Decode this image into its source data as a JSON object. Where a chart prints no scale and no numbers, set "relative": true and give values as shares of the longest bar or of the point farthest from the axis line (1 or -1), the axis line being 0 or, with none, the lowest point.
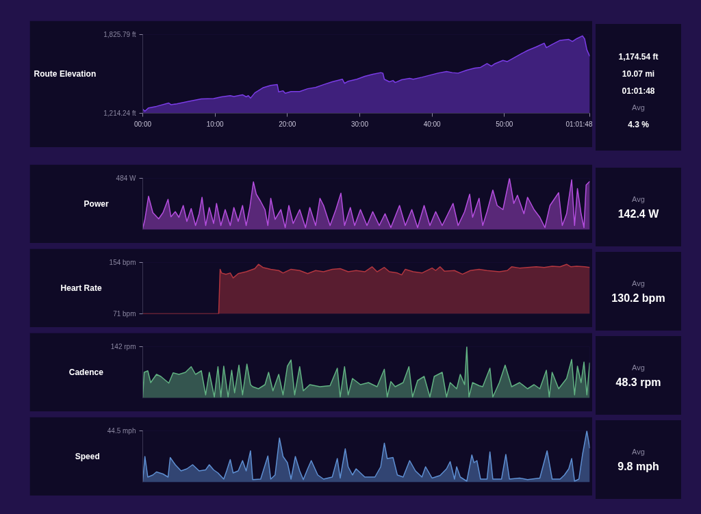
{
  "chart_data": [
    {
      "type": "area",
      "title": "Route Elevation",
      "xlim": [
        0,
        61.8
      ],
      "xticks": [
        {
          "value": 0,
          "label": "00:00"
        },
        {
          "value": 10,
          "label": "10:00"
        },
        {
          "value": 20,
          "label": "20:00"
        },
        {
          "value": 30,
          "label": "30:00"
        },
        {
          "value": 40,
          "label": "40:00"
        },
        {
          "value": 50,
          "label": "50:00"
        },
        {
          "value": 61.8,
          "label": "01:01:48"
        }
      ],
      "ylim": [
        1214.24,
        1825.79
      ],
      "yticks": [
        {
          "value": 1214.24,
          "label": "1,214.24 ft"
        },
        {
          "value": 1825.79,
          "label": "1,825.79 ft"
        }
      ],
      "x": [
        0,
        0.3,
        0.8,
        1.9,
        3.6,
        3.9,
        4.7,
        6.4,
        8.1,
        9.8,
        10.9,
        12.1,
        12.6,
        13.8,
        14.3,
        14.6,
        14.9,
        15.5,
        16.6,
        17.7,
        18.6,
        18.8,
        19.4,
        19.7,
        20.5,
        21.7,
        22.8,
        23.9,
        25.0,
        26.2,
        27.6,
        27.9,
        28.4,
        29.6,
        30.7,
        31.8,
        32.9,
        33.2,
        33.4,
        34.1,
        34.6,
        34.9,
        35.8,
        36.9,
        37.4,
        38.6,
        39.7,
        40.8,
        42.0,
        42.8,
        43.6,
        44.8,
        45.9,
        46.7,
        47.6,
        48.2,
        48.7,
        49.8,
        50.4,
        51.0,
        52.1,
        53.2,
        54.4,
        55.5,
        55.8,
        56.6,
        57.7,
        58.9,
        59.4,
        60.0,
        60.8,
        61.1,
        61.4,
        61.8
      ],
      "series": [
        {
          "color": "#7a3ce6",
          "values": [
            1246,
            1230,
            1256,
            1268,
            1294,
            1281,
            1287,
            1307,
            1326,
            1329,
            1342,
            1351,
            1345,
            1358,
            1342,
            1351,
            1332,
            1373,
            1412,
            1431,
            1437,
            1380,
            1389,
            1370,
            1383,
            1383,
            1405,
            1415,
            1437,
            1459,
            1479,
            1447,
            1463,
            1479,
            1501,
            1517,
            1530,
            1526,
            1479,
            1459,
            1469,
            1453,
            1475,
            1485,
            1479,
            1494,
            1510,
            1526,
            1539,
            1530,
            1526,
            1549,
            1565,
            1571,
            1600,
            1580,
            1600,
            1625,
            1616,
            1635,
            1670,
            1702,
            1730,
            1759,
            1724,
            1749,
            1781,
            1788,
            1772,
            1794,
            1816,
            1791,
            1708,
            1657
          ]
        }
      ],
      "annotations": [
        "1,174.54 ft",
        "10.07 mi",
        "01:01:48",
        "Avg",
        "4.3 %"
      ]
    },
    {
      "type": "area",
      "title": "Power",
      "relative": true,
      "xlim": [
        0,
        61.8
      ],
      "tick_labels": false,
      "x": [
        0,
        0.3,
        0.8,
        1.4,
        2.2,
        2.8,
        3.5,
        3.9,
        4.5,
        5.0,
        5.6,
        6.1,
        6.7,
        7.3,
        7.8,
        8.2,
        8.7,
        9.2,
        9.8,
        10.2,
        10.8,
        11.4,
        12.1,
        12.6,
        13.2,
        13.8,
        14.3,
        14.8,
        15.3,
        15.7,
        16.3,
        16.9,
        17.3,
        17.7,
        18.3,
        19.1,
        19.7,
        20.2,
        20.8,
        21.7,
        22.5,
        23.1,
        23.9,
        24.5,
        25.0,
        25.9,
        26.7,
        27.4,
        27.9,
        28.7,
        29.3,
        30.1,
        31.0,
        31.8,
        32.7,
        33.5,
        34.3,
        35.5,
        36.3,
        37.2,
        38.0,
        38.9,
        39.7,
        40.5,
        41.4,
        42.0,
        42.9,
        43.6,
        44.5,
        45.2,
        45.6,
        46.5,
        47.0,
        47.6,
        48.4,
        49.0,
        49.8,
        50.7,
        51.3,
        51.8,
        52.7,
        53.2,
        54.1,
        54.9,
        55.6,
        56.3,
        57.5,
        58.0,
        58.6,
        59.3,
        59.7,
        60.1,
        60.6,
        61.0,
        61.3,
        61.8
      ],
      "series": [
        {
          "color": "#b44ede",
          "values": [
            0.02,
            0.2,
            0.65,
            0.33,
            0.21,
            0.33,
            0.59,
            0.25,
            0.35,
            0.24,
            0.47,
            0.16,
            0.41,
            0.08,
            0.31,
            0.63,
            0.08,
            0.43,
            0.12,
            0.51,
            0.08,
            0.39,
            0.08,
            0.43,
            0.16,
            0.47,
            0.08,
            0.43,
            0.93,
            0.69,
            0.55,
            0.39,
            0.08,
            0.61,
            0.2,
            0.39,
            0.04,
            0.47,
            0.12,
            0.39,
            0.04,
            0.43,
            0.08,
            0.61,
            0.47,
            0.08,
            0.39,
            0.71,
            0.08,
            0.43,
            0.08,
            0.39,
            0.08,
            0.35,
            0.08,
            0.31,
            0.04,
            0.47,
            0.08,
            0.39,
            0.04,
            0.47,
            0.08,
            0.35,
            0.08,
            0.25,
            0.51,
            0.08,
            0.35,
            0.69,
            0.24,
            0.61,
            0.08,
            0.35,
            0.77,
            0.47,
            0.39,
            1,
            0.51,
            0.67,
            0.31,
            0.63,
            0.39,
            0.24,
            0.04,
            0.47,
            0.72,
            0.08,
            0.31,
            0.97,
            0.08,
            0.8,
            0.31,
            0.04,
            0.87,
            0.94
          ]
        }
      ],
      "annotations": [
        "484 W",
        "Avg",
        "142.4 W"
      ]
    },
    {
      "type": "area",
      "title": "Heart Rate",
      "xlim": [
        0,
        61.8
      ],
      "tick_labels": "y",
      "ylim": [
        71,
        154
      ],
      "yticks": [
        {
          "value": 71,
          "label": "71 bpm"
        },
        {
          "value": 154,
          "label": "154 bpm"
        }
      ],
      "x": [
        0,
        10.5,
        10.7,
        10.9,
        11.5,
        12.1,
        12.5,
        13.2,
        14.3,
        15.5,
        16.0,
        16.6,
        17.7,
        18.8,
        19.4,
        20.5,
        21.7,
        22.8,
        23.9,
        25.0,
        26.2,
        27.3,
        28.4,
        29.5,
        30.7,
        31.7,
        32.4,
        33.4,
        34.1,
        35.2,
        35.8,
        36.3,
        37.4,
        38.6,
        40.0,
        40.5,
        41.1,
        41.7,
        43.1,
        44.2,
        45.3,
        46.5,
        47.6,
        49.3,
        50.4,
        51.0,
        52.1,
        53.2,
        54.4,
        55.5,
        56.6,
        57.7,
        58.6,
        59.2,
        60.0,
        61.1,
        61.8
      ],
      "series": [
        {
          "color": "#b3363f",
          "values": [
            71,
            71,
            143,
            137,
            135,
            137,
            129,
            136,
            139,
            144,
            151,
            146,
            143,
            141,
            137,
            143,
            141,
            136,
            141,
            139,
            143,
            144,
            139,
            141,
            139,
            147,
            139,
            146,
            139,
            137,
            134,
            143,
            139,
            137,
            145,
            141,
            147,
            140,
            141,
            135,
            141,
            143,
            141,
            139,
            141,
            147,
            145,
            146,
            147,
            146,
            148,
            147,
            151,
            147,
            148,
            147,
            146
          ]
        }
      ],
      "annotations": [
        "Avg",
        "130.2 bpm"
      ]
    },
    {
      "type": "area",
      "title": "Cadence",
      "relative": true,
      "xlim": [
        0,
        61.8
      ],
      "tick_labels": false,
      "x": [
        0,
        0.2,
        0.7,
        1.1,
        1.9,
        2.5,
        3.6,
        4.2,
        5.0,
        5.9,
        6.7,
        7.3,
        8.1,
        8.7,
        9.2,
        9.9,
        10.4,
        10.8,
        11.2,
        11.8,
        12.3,
        12.7,
        13.3,
        13.8,
        14.4,
        14.9,
        15.2,
        16.0,
        16.9,
        17.4,
        18.0,
        18.8,
        19.4,
        20.0,
        20.5,
        21.0,
        21.7,
        22.2,
        23.1,
        24.5,
        25.9,
        26.9,
        27.3,
        27.9,
        28.4,
        29.0,
        30.1,
        31.2,
        32.4,
        33.4,
        33.8,
        34.3,
        34.9,
        36.0,
        36.8,
        37.3,
        38.0,
        38.9,
        39.7,
        40.3,
        41.4,
        42.0,
        42.5,
        43.4,
        43.9,
        44.5,
        44.8,
        45.1,
        45.6,
        46.5,
        47.0,
        48.0,
        48.4,
        49.3,
        50.1,
        51.0,
        52.1,
        53.2,
        54.1,
        54.9,
        55.8,
        56.2,
        56.6,
        57.5,
        58.6,
        59.3,
        59.7,
        60.1,
        60.6,
        61.0,
        61.4,
        61.8
      ],
      "series": [
        {
          "color": "#62b283",
          "values": [
            0.01,
            0.5,
            0.53,
            0.3,
            0.46,
            0.42,
            0.29,
            0.49,
            0.46,
            0.5,
            0.61,
            0.46,
            0.53,
            0.06,
            0.5,
            0.02,
            0.61,
            0.02,
            0.62,
            0.02,
            0.54,
            0.1,
            0.64,
            0.06,
            0.66,
            0.26,
            0.22,
            0.18,
            0.26,
            0.5,
            0.14,
            0.46,
            0.06,
            0.62,
            0.74,
            0.06,
            0.61,
            0.14,
            0.26,
            0.22,
            0.24,
            0.58,
            0.02,
            0.61,
            0.06,
            0.38,
            0.26,
            0.3,
            0.22,
            0.56,
            0.02,
            0.32,
            0.22,
            0.3,
            0.61,
            0.02,
            0.34,
            0.42,
            0.02,
            0.42,
            0.5,
            0.02,
            0.3,
            0.18,
            0.46,
            0.26,
            1,
            0.02,
            0.3,
            0.24,
            0.22,
            0.58,
            0.02,
            0.3,
            0.64,
            0.22,
            0.3,
            0.18,
            0.26,
            0.18,
            0.54,
            0.02,
            0.5,
            0.18,
            0.38,
            0.75,
            0.06,
            0.62,
            0.3,
            0.7,
            0.06,
            0.69
          ]
        }
      ],
      "annotations": [
        "142 rpm",
        "Avg",
        "48.3 rpm"
      ]
    },
    {
      "type": "area",
      "title": "Speed",
      "relative": true,
      "xlim": [
        0,
        61.8
      ],
      "tick_labels": false,
      "x": [
        0,
        0.3,
        0.7,
        1.4,
        1.9,
        2.8,
        3.5,
        3.8,
        4.5,
        5.3,
        6.1,
        6.9,
        7.8,
        8.7,
        9.2,
        9.8,
        10.4,
        11.2,
        11.6,
        12.1,
        12.5,
        13.2,
        13.8,
        14.3,
        14.9,
        15.2,
        16.3,
        17.3,
        17.7,
        18.3,
        18.9,
        19.4,
        20.0,
        20.5,
        21.1,
        21.7,
        22.2,
        22.8,
        23.3,
        24.2,
        25.0,
        26.2,
        26.9,
        27.3,
        28.0,
        28.4,
        29.0,
        29.5,
        30.7,
        32.1,
        32.9,
        33.4,
        33.8,
        34.6,
        35.2,
        36.0,
        36.9,
        37.7,
        38.6,
        39.1,
        40.0,
        41.1,
        42.0,
        42.5,
        43.1,
        43.4,
        43.9,
        44.8,
        45.5,
        45.8,
        46.2,
        46.7,
        47.6,
        48.0,
        48.4,
        49.6,
        50.2,
        50.7,
        52.1,
        53.2,
        54.9,
        55.9,
        56.3,
        56.6,
        57.7,
        58.3,
        58.9,
        59.3,
        59.7,
        60.3,
        60.8,
        61.4,
        61.8
      ],
      "series": [
        {
          "color": "#5e8fd2",
          "values": [
            0.01,
            0.5,
            0.1,
            0.14,
            0.2,
            0.16,
            0.1,
            0.48,
            0.34,
            0.22,
            0.26,
            0.34,
            0.22,
            0.24,
            0.34,
            0.24,
            0.18,
            0.06,
            0.22,
            0.44,
            0.18,
            0.22,
            0.42,
            0.22,
            0.61,
            0.05,
            0.06,
            0.51,
            0.06,
            0.14,
            0.86,
            0.5,
            0.38,
            0.06,
            0.5,
            0.22,
            0.05,
            0.26,
            0.42,
            0.14,
            0.06,
            0.1,
            0.46,
            0.08,
            0.65,
            0.3,
            0.14,
            0.26,
            0.1,
            0.1,
            0.3,
            0.76,
            0.46,
            0.48,
            0.14,
            0.1,
            0.42,
            0.22,
            0.1,
            0.3,
            0.08,
            0.13,
            0.26,
            0.4,
            0.06,
            0.3,
            0.1,
            0.02,
            0.53,
            0.38,
            0.42,
            0.06,
            0.06,
            0.59,
            0.06,
            0.06,
            0.54,
            0.06,
            0.08,
            0.05,
            0.08,
            0.61,
            0.3,
            0.06,
            0.06,
            0.14,
            0.26,
            0.46,
            0.02,
            0.06,
            0.54,
            1,
            0.66
          ]
        }
      ],
      "annotations": [
        "44.5 mph",
        "Avg",
        "9.8 mph"
      ]
    }
  ]
}
